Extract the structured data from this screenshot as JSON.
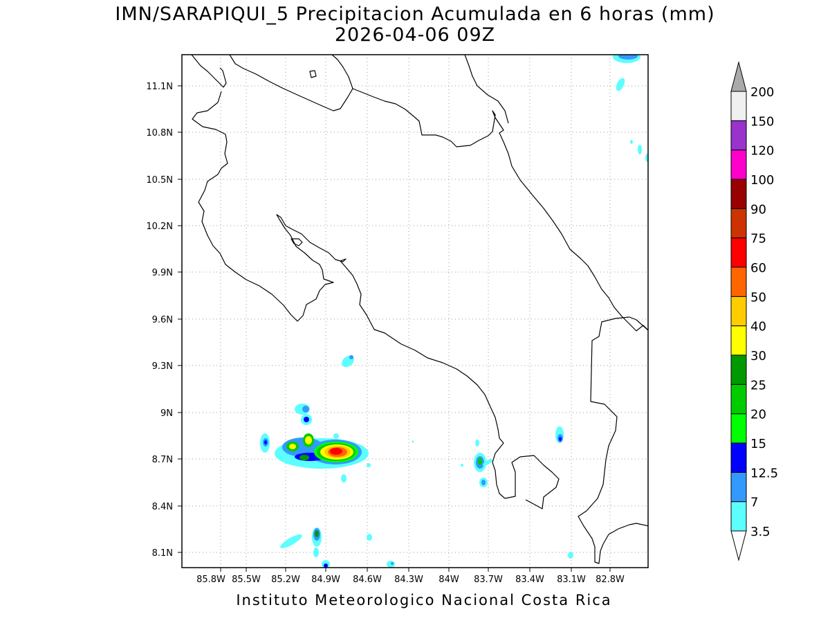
{
  "title": {
    "line1": "IMN/SARAPIQUI_5 Precipitacion Acumulada en 6 horas (mm)",
    "line2": "2026-04-06 09Z"
  },
  "credit": "Instituto Meteorologico Nacional Costa Rica",
  "map": {
    "lon_range": [
      -86.05,
      -83.05
    ],
    "lat_range": [
      8.0,
      11.3
    ],
    "lon_ticks": [
      "85.8W",
      "85.5W",
      "85.2W",
      "84.9W",
      "84.6W",
      "84.3W",
      "84W",
      "83.7W",
      "83.4W",
      "83.1W",
      "82.8W"
    ],
    "lat_ticks": [
      "11.1N",
      "10.8N",
      "10.5N",
      "10.2N",
      "9.9N",
      "9.6N",
      "9.3N",
      "9N",
      "8.7N",
      "8.4N",
      "8.1N"
    ],
    "grid": "dotted"
  },
  "colorbar": {
    "levels": [
      "3.5",
      "7",
      "12.5",
      "15",
      "20",
      "25",
      "30",
      "40",
      "50",
      "60",
      "75",
      "90",
      "100",
      "120",
      "150",
      "200"
    ],
    "colors": [
      "#5cfefe",
      "#3399ff",
      "#0000ff",
      "#00ff00",
      "#00cc00",
      "#009900",
      "#ffff00",
      "#ffcc00",
      "#ff6600",
      "#ff0000",
      "#cc3300",
      "#990000",
      "#ff00cc",
      "#9933cc",
      "#f0f0f0",
      "#aaaaaa"
    ]
  }
}
